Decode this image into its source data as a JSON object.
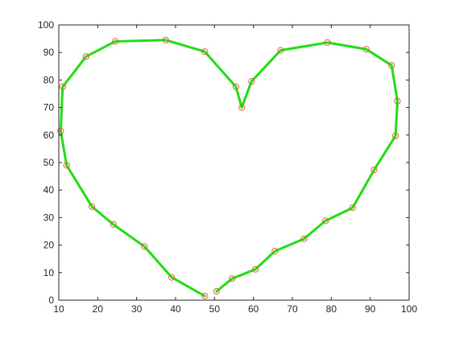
{
  "chart_data": {
    "type": "line",
    "title": "",
    "xlabel": "",
    "ylabel": "",
    "xlim": [
      10,
      100
    ],
    "ylim": [
      0,
      100
    ],
    "xticks": [
      "10",
      "20",
      "30",
      "40",
      "50",
      "60",
      "70",
      "80",
      "90",
      "100"
    ],
    "yticks": [
      "0",
      "10",
      "20",
      "30",
      "40",
      "50",
      "60",
      "70",
      "80",
      "90",
      "100"
    ],
    "grid": false,
    "legend": "none",
    "series": [
      {
        "line_color": "#22dd11",
        "marker_color": "#e8603c",
        "marker": "circle",
        "x": [
          47.5,
          39,
          32,
          24,
          18.5,
          12,
          10.5,
          11,
          17,
          24.5,
          37.5,
          47.5,
          55.5,
          57,
          59.5,
          67,
          79,
          89,
          95.5,
          97,
          96.5,
          91,
          85.5,
          78.5,
          73,
          65.5,
          60.5,
          54.5,
          50.5
        ],
        "y": [
          1.5,
          8.3,
          19.5,
          27.5,
          34,
          49,
          61.5,
          77.5,
          88.5,
          94,
          94.5,
          90.3,
          77.5,
          70,
          79.5,
          90.8,
          93.6,
          91.2,
          85.3,
          72.3,
          59.7,
          47.3,
          33.6,
          28.8,
          22.3,
          17.8,
          11.2,
          7.8,
          3.2
        ]
      }
    ]
  }
}
